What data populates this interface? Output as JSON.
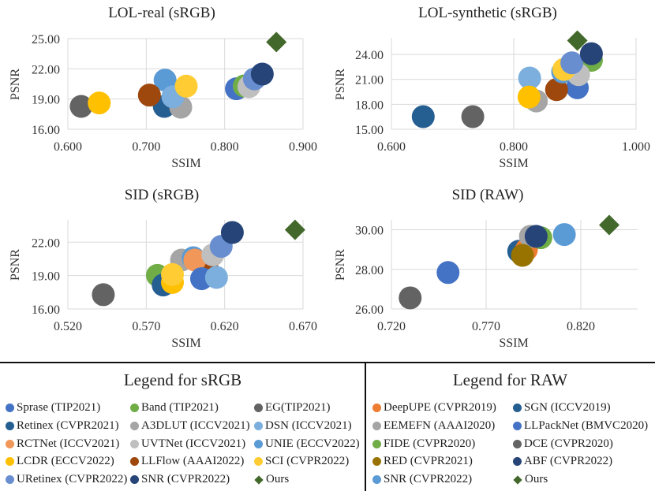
{
  "colors": {
    "Sprase (TIP2021)": "#4472C4",
    "Band (TIP2021)": "#70AD47",
    "EG(TIP2021)": "#636363",
    "Retinex (CVPR2021)": "#255E91",
    "A3DLUT (ICCV2021)": "#A5A5A5",
    "DSN (ICCV2021)": "#7CAFDD",
    "RCTNet (ICCV2021)": "#F1975A",
    "UVTNet (ICCV2021)": "#BFBFBF",
    "UNIE (ECCV2022)": "#5B9BD5",
    "LCDR (ECCV2022)": "#FFC000",
    "LLFlow (AAAI2022)": "#9E480E",
    "SCI (CVPR2022)": "#FFCD33",
    "URetinex (CVPR2022)": "#698ED0",
    "SNR (CVPR2022)": "#264478",
    "Ours": "#43682B",
    "DeepUPE (CVPR2019)": "#ED7D31",
    "SGN (ICCV2019)": "#255E91",
    "EEMEFN (AAAI2020)": "#A5A5A5",
    "LLPackNet (BMVC2020)": "#4472C4",
    "FIDE (CVPR2020)": "#70AD47",
    "DCE (CVPR2020)": "#636363",
    "RED (CVPR2021)": "#997300",
    "ABF (CVPR2022)": "#264478",
    "SNR (CVPR2022) RAW": "#5B9BD5"
  },
  "legend_srgb": {
    "title": "Legend for sRGB",
    "items": [
      "Sprase (TIP2021)",
      "Band (TIP2021)",
      "EG(TIP2021)",
      "Retinex (CVPR2021)",
      "A3DLUT (ICCV2021)",
      "DSN (ICCV2021)",
      "RCTNet (ICCV2021)",
      "UVTNet (ICCV2021)",
      "UNIE (ECCV2022)",
      "LCDR (ECCV2022)",
      "LLFlow (AAAI2022)",
      "SCI (CVPR2022)",
      "URetinex (CVPR2022)",
      "SNR (CVPR2022)",
      "Ours"
    ]
  },
  "legend_raw": {
    "title": "Legend for RAW",
    "items": [
      "DeepUPE (CVPR2019)",
      "SGN (ICCV2019)",
      "EEMEFN (AAAI2020)",
      "LLPackNet (BMVC2020)",
      "FIDE (CVPR2020)",
      "DCE (CVPR2020)",
      "RED (CVPR2021)",
      "ABF (CVPR2022)",
      "SNR (CVPR2022)",
      "Ours"
    ]
  },
  "chart_data": [
    {
      "type": "scatter",
      "title": "LOL-real (sRGB)",
      "xlabel": "SSIM",
      "ylabel": "PSNR",
      "xlim": [
        0.6,
        0.9
      ],
      "ylim": [
        16,
        25
      ],
      "xticks": [
        "0.600",
        "0.700",
        "0.800",
        "0.900"
      ],
      "yticks": [
        "16.00",
        "19.00",
        "22.00",
        "25.00"
      ],
      "grid": true,
      "points": [
        {
          "name": "EG(TIP2021)",
          "x": 0.617,
          "y": 18.27
        },
        {
          "name": "LCDR (ECCV2022)",
          "x": 0.64,
          "y": 18.61
        },
        {
          "name": "Retinex (CVPR2021)",
          "x": 0.723,
          "y": 18.27
        },
        {
          "name": "A3DLUT (ICCV2021)",
          "x": 0.744,
          "y": 18.19
        },
        {
          "name": "UNIE (ECCV2022)",
          "x": 0.724,
          "y": 20.88
        },
        {
          "name": "LLFlow (AAAI2022)",
          "x": 0.704,
          "y": 19.39
        },
        {
          "name": "DSN (ICCV2021)",
          "x": 0.734,
          "y": 19.23
        },
        {
          "name": "SCI (CVPR2022)",
          "x": 0.751,
          "y": 20.28
        },
        {
          "name": "Sprase (TIP2021)",
          "x": 0.815,
          "y": 20.02
        },
        {
          "name": "Band (TIP2021)",
          "x": 0.825,
          "y": 20.3
        },
        {
          "name": "UVTNet (ICCV2021)",
          "x": 0.831,
          "y": 20.23
        },
        {
          "name": "URetinex (CVPR2022)",
          "x": 0.838,
          "y": 21.0
        },
        {
          "name": "SNR (CVPR2022)",
          "x": 0.848,
          "y": 21.48
        },
        {
          "name": "Ours",
          "x": 0.866,
          "y": 24.66
        }
      ]
    },
    {
      "type": "scatter",
      "title": "LOL-synthetic (sRGB)",
      "xlabel": "SSIM",
      "ylabel": "PSNR",
      "xlim": [
        0.6,
        1.0
      ],
      "ylim": [
        15,
        26
      ],
      "xticks": [
        "0.600",
        "0.800",
        "1.000"
      ],
      "yticks": [
        "15.00",
        "18.00",
        "21.00",
        "24.00"
      ],
      "grid": true,
      "points": [
        {
          "name": "Retinex (CVPR2021)",
          "x": 0.652,
          "y": 16.52
        },
        {
          "name": "EG(TIP2021)",
          "x": 0.733,
          "y": 16.52
        },
        {
          "name": "DSN (ICCV2021)",
          "x": 0.826,
          "y": 21.16
        },
        {
          "name": "A3DLUT (ICCV2021)",
          "x": 0.837,
          "y": 18.4
        },
        {
          "name": "LCDR (ECCV2022)",
          "x": 0.825,
          "y": 18.88
        },
        {
          "name": "Sprase (TIP2021)",
          "x": 0.904,
          "y": 19.99
        },
        {
          "name": "LLFlow (AAAI2022)",
          "x": 0.87,
          "y": 19.77
        },
        {
          "name": "Band (TIP2021)",
          "x": 0.927,
          "y": 23.3
        },
        {
          "name": "UNIE (ECCV2022)",
          "x": 0.88,
          "y": 21.9
        },
        {
          "name": "UVTNet (ICCV2021)",
          "x": 0.906,
          "y": 21.57
        },
        {
          "name": "SCI (CVPR2022)",
          "x": 0.882,
          "y": 22.2
        },
        {
          "name": "URetinex (CVPR2022)",
          "x": 0.895,
          "y": 22.99
        },
        {
          "name": "SNR (CVPR2022)",
          "x": 0.927,
          "y": 24.09
        },
        {
          "name": "Ours",
          "x": 0.904,
          "y": 25.67
        }
      ]
    },
    {
      "type": "scatter",
      "title": "SID (sRGB)",
      "xlabel": "SSIM",
      "ylabel": "PSNR",
      "xlim": [
        0.52,
        0.67
      ],
      "ylim": [
        16,
        24
      ],
      "xticks": [
        "0.520",
        "0.570",
        "0.620",
        "0.670"
      ],
      "yticks": [
        "16.00",
        "19.00",
        "22.00"
      ],
      "grid": true,
      "points": [
        {
          "name": "EG(TIP2021)",
          "x": 0.5426,
          "y": 17.28
        },
        {
          "name": "A3DLUT (ICCV2021)",
          "x": 0.5925,
          "y": 20.39
        },
        {
          "name": "UNIE (ECCV2022)",
          "x": 0.6,
          "y": 20.6
        },
        {
          "name": "LLFlow (AAAI2022)",
          "x": 0.6086,
          "y": 19.9
        },
        {
          "name": "RCTNet (ICCV2021)",
          "x": 0.601,
          "y": 20.39
        },
        {
          "name": "Band (TIP2021)",
          "x": 0.5771,
          "y": 19.02
        },
        {
          "name": "Retinex (CVPR2021)",
          "x": 0.5808,
          "y": 18.15
        },
        {
          "name": "LCDR (ECCV2022)",
          "x": 0.5867,
          "y": 18.38
        },
        {
          "name": "SCI (CVPR2022)",
          "x": 0.5867,
          "y": 19.09
        },
        {
          "name": "Sprase (TIP2021)",
          "x": 0.6053,
          "y": 18.72
        },
        {
          "name": "DSN (ICCV2021)",
          "x": 0.6148,
          "y": 18.83
        },
        {
          "name": "UVTNet (ICCV2021)",
          "x": 0.6125,
          "y": 20.86
        },
        {
          "name": "URetinex (CVPR2022)",
          "x": 0.6178,
          "y": 21.62
        },
        {
          "name": "SNR (CVPR2022)",
          "x": 0.6249,
          "y": 22.87
        },
        {
          "name": "Ours",
          "x": 0.6649,
          "y": 23.11
        }
      ]
    },
    {
      "type": "scatter",
      "title": "SID (RAW)",
      "xlabel": "SSIM",
      "ylabel": "PSNR",
      "xlim": [
        0.72,
        0.85
      ],
      "ylim": [
        26,
        30.5
      ],
      "xticks": [
        "0.720",
        "0.770",
        "0.820"
      ],
      "yticks": [
        "26.00",
        "28.00",
        "30.00"
      ],
      "grid": true,
      "points": [
        {
          "name": "DCE (CVPR2020)",
          "x": 0.7299,
          "y": 26.56
        },
        {
          "name": "LLPackNet (BMVC2020)",
          "x": 0.7499,
          "y": 27.84
        },
        {
          "name": "SGN (ICCV2019)",
          "x": 0.7872,
          "y": 28.91
        },
        {
          "name": "DeepUPE (CVPR2019)",
          "x": 0.7913,
          "y": 29.0
        },
        {
          "name": "FIDE (CVPR2020)",
          "x": 0.7989,
          "y": 29.6
        },
        {
          "name": "EEMEFN (AAAI2020)",
          "x": 0.7934,
          "y": 29.67
        },
        {
          "name": "ABF (CVPR2022)",
          "x": 0.7964,
          "y": 29.67
        },
        {
          "name": "RED (CVPR2021)",
          "x": 0.7892,
          "y": 28.71
        },
        {
          "name": "SNR (CVPR2022) RAW",
          "x": 0.8113,
          "y": 29.76
        },
        {
          "name": "Ours",
          "x": 0.835,
          "y": 30.24
        }
      ]
    }
  ]
}
